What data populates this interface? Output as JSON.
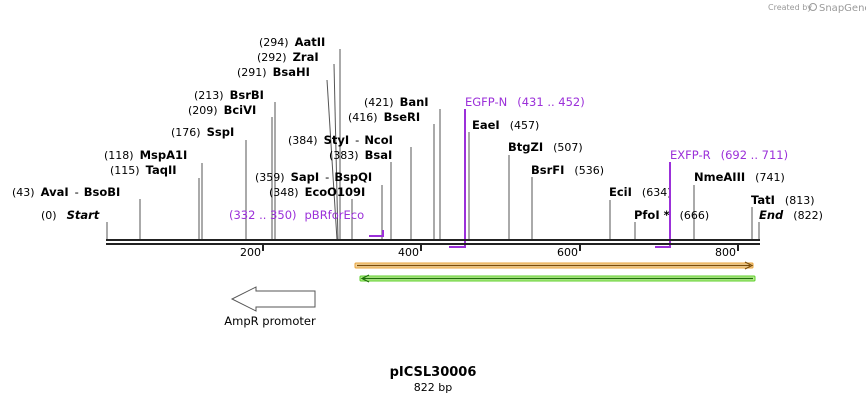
{
  "header": {
    "credit_prefix": "Created by",
    "brand": "SnapGene"
  },
  "plasmid": {
    "name": "pICSL30006",
    "length_text": "822 bp",
    "length_bp": 822
  },
  "ruler": {
    "ticks": [
      200,
      400,
      600,
      800
    ]
  },
  "sites": [
    {
      "name": "AvaI",
      "pos": "(43)",
      "bp": 43,
      "partner": "BsoBI"
    },
    {
      "name": "Start",
      "pos": "(0)",
      "bp": 0,
      "italic": true
    },
    {
      "name": "TaqII",
      "pos": "(115)",
      "bp": 115
    },
    {
      "name": "MspA1I",
      "pos": "(118)",
      "bp": 118
    },
    {
      "name": "SspI",
      "pos": "(176)",
      "bp": 176
    },
    {
      "name": "BciVI",
      "pos": "(209)",
      "bp": 209
    },
    {
      "name": "BsrBI",
      "pos": "(213)",
      "bp": 213
    },
    {
      "name": "BsaHI",
      "pos": "(291)",
      "bp": 291
    },
    {
      "name": "ZraI",
      "pos": "(292)",
      "bp": 292
    },
    {
      "name": "AatII",
      "pos": "(294)",
      "bp": 294
    },
    {
      "name": "EcoO109I",
      "pos": "(348)",
      "bp": 348
    },
    {
      "name": "SapI",
      "pos": "(359)",
      "bp": 359,
      "partner": "BspQI"
    },
    {
      "name": "StyI",
      "pos": "(384)",
      "bp": 384,
      "partner": "NcoI"
    },
    {
      "name": "BsaI",
      "pos": "(383)",
      "bp": 383
    },
    {
      "name": "BseRI",
      "pos": "(416)",
      "bp": 416
    },
    {
      "name": "BanI",
      "pos": "(421)",
      "bp": 421
    },
    {
      "name": "EaeI",
      "pos": "(457)",
      "bp": 457
    },
    {
      "name": "BtgZI",
      "pos": "(507)",
      "bp": 507
    },
    {
      "name": "BsrFI",
      "pos": "(536)",
      "bp": 536
    },
    {
      "name": "EciI",
      "pos": "(634)",
      "bp": 634
    },
    {
      "name": "PfoI",
      "pos": "(666)",
      "bp": 666,
      "marker": "*"
    },
    {
      "name": "NmeAIII",
      "pos": "(741)",
      "bp": 741
    },
    {
      "name": "TatI",
      "pos": "(813)",
      "bp": 813
    },
    {
      "name": "End",
      "pos": "(822)",
      "bp": 822,
      "italic": true
    }
  ],
  "primers": [
    {
      "name": "pBRforEco",
      "range": "(332 .. 350)",
      "start": 332,
      "end": 350
    },
    {
      "name": "EGFP-N",
      "range": "(431 .. 452)",
      "start": 431,
      "end": 452
    },
    {
      "name": "EXFP-R",
      "range": "(692 .. 711)",
      "start": 692,
      "end": 711
    }
  ],
  "features": [
    {
      "name": "AmpR promoter",
      "direction": "reverse"
    }
  ],
  "colors": {
    "primer": "#9b30d9",
    "orf_orange": "#e8a33a",
    "orf_green": "#5ccf2a",
    "backbone": "#222222",
    "site_line": "#555555"
  }
}
